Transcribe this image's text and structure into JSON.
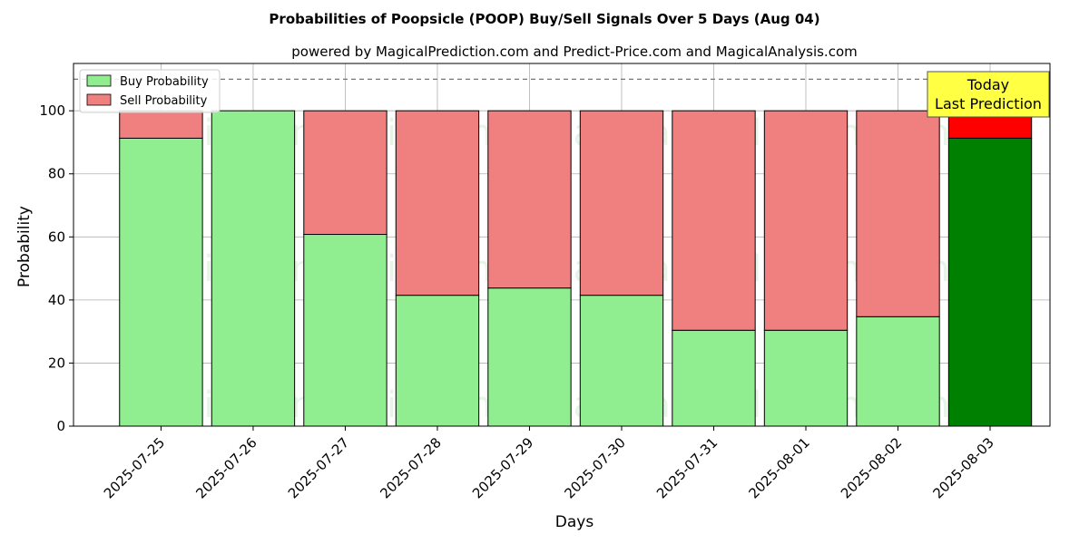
{
  "chart_data": {
    "type": "bar",
    "stacked": true,
    "title": "Probabilities of Poopsicle (POOP) Buy/Sell Signals Over 5 Days (Aug 04)",
    "subtitle": "powered by MagicalPrediction.com and Predict-Price.com and MagicalAnalysis.com",
    "xlabel": "Days",
    "ylabel": "Probability",
    "ylim": [
      0,
      115
    ],
    "yticks": [
      0,
      20,
      40,
      60,
      80,
      100
    ],
    "grid": true,
    "legend_position": "top-left",
    "categories": [
      "2025-07-25",
      "2025-07-26",
      "2025-07-27",
      "2025-07-28",
      "2025-07-29",
      "2025-07-30",
      "2025-07-31",
      "2025-08-01",
      "2025-08-02",
      "2025-08-03"
    ],
    "series": [
      {
        "name": "Buy Probability",
        "values": [
          91.3,
          100,
          60.8,
          41.5,
          43.8,
          41.5,
          30.4,
          30.4,
          34.7,
          91.3
        ]
      },
      {
        "name": "Sell Probability",
        "values": [
          8.7,
          0,
          39.2,
          58.5,
          56.2,
          58.5,
          69.6,
          69.6,
          65.3,
          8.7
        ]
      }
    ],
    "reference_line": {
      "value": 110,
      "style": "dashed"
    },
    "highlight_index": 9,
    "annotation": {
      "line1": "Today",
      "line2": "Last Prediction"
    },
    "watermarks": [
      "MagicalAnalysis.com",
      "MagicalPrediction.com"
    ]
  },
  "colors": {
    "buy": "#90ee90",
    "sell": "#f08080",
    "buy_highlight": "#008000",
    "sell_highlight": "#ff0000",
    "annotation_bg": "#ffff44"
  }
}
